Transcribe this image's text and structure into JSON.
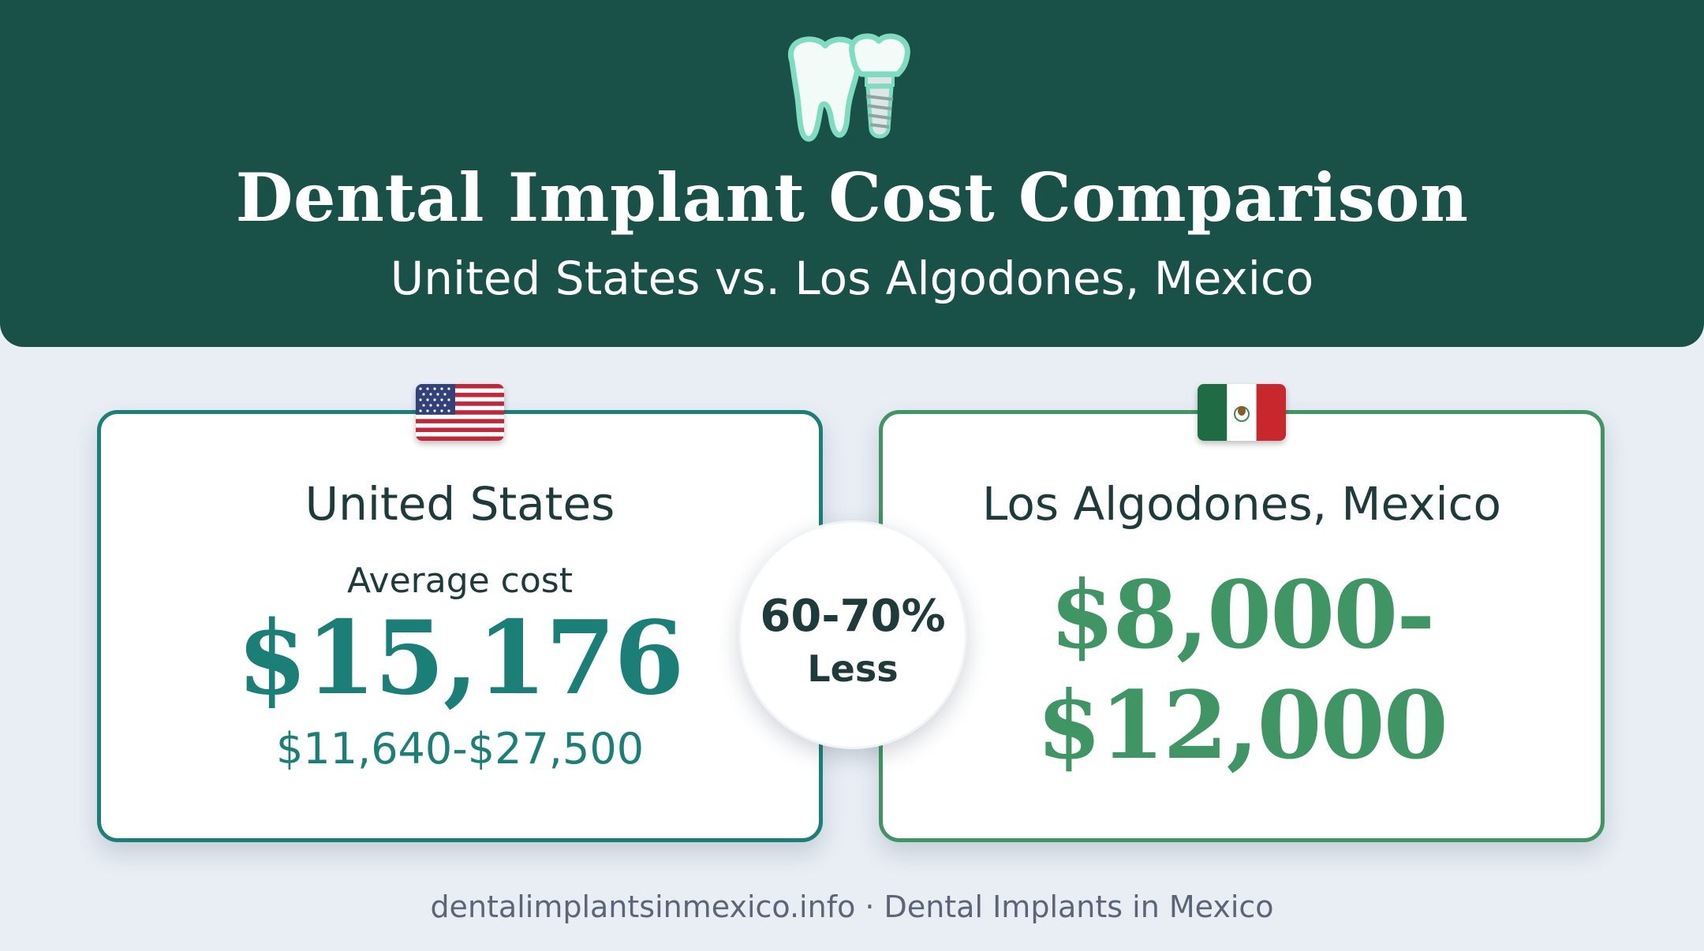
{
  "header": {
    "title": "Dental Implant Cost Comparison",
    "subtitle": "United States vs. Los Algodones, Mexico",
    "icon": "tooth-and-implant-icon",
    "background_color": "#195148"
  },
  "us_card": {
    "flag": "us-flag-icon",
    "heading": "United States",
    "average_label": "Average cost",
    "average_price": "$15,176",
    "range": "$11,640-$27,500",
    "accent_color": "#1b7f78"
  },
  "mx_card": {
    "flag": "mexico-flag-icon",
    "heading": "Los Algodones, Mexico",
    "price_line1": "$8,000-",
    "price_line2": "$12,000",
    "accent_color": "#3f9563"
  },
  "badge": {
    "percent": "60-70%",
    "label": "Less"
  },
  "footer": {
    "text": "dentalimplantsinmexico.info · Dental Implants in Mexico"
  }
}
